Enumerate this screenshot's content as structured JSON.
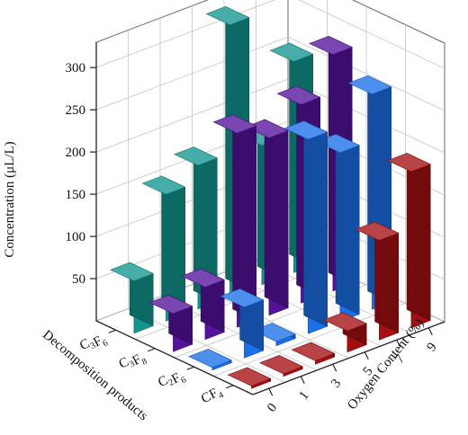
{
  "chart_data": {
    "type": "bar3d",
    "zlabel": "Concentration (μL/L)",
    "ylabel": "Decomposition products",
    "xlabel": "Oxygen Content (%)",
    "x_ticks": [
      "0",
      "1",
      "3",
      "5",
      "7",
      "9"
    ],
    "y_categories": [
      {
        "main": "C",
        "sub1": "3",
        "mid": "F",
        "sub2": "6"
      },
      {
        "main": "C",
        "sub1": "3",
        "mid": "F",
        "sub2": "8"
      },
      {
        "main": "C",
        "sub1": "2",
        "mid": "F",
        "sub2": "6"
      },
      {
        "main": "CF",
        "sub1": "",
        "mid": "",
        "sub2": "4"
      }
    ],
    "z_ticks": [
      50,
      100,
      150,
      200,
      250,
      300
    ],
    "zlim": [
      0,
      330
    ],
    "grid": true,
    "series": [
      {
        "color": "#13968f",
        "values": [
          62,
          150,
          170,
          322,
          165,
          250
        ]
      },
      {
        "color": "#55129b",
        "values": [
          45,
          62,
          230,
          210,
          235,
          280
        ]
      },
      {
        "color": "#1b6fe8",
        "values": [
          0,
          60,
          5,
          230,
          200,
          255
        ]
      },
      {
        "color": "#a50f11",
        "values": [
          0,
          0,
          4,
          25,
          118,
          185
        ]
      }
    ]
  }
}
